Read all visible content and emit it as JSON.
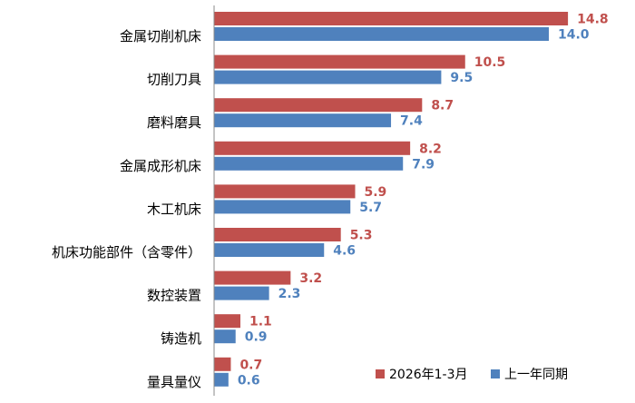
{
  "chart_data": {
    "type": "bar",
    "orientation": "horizontal",
    "categories": [
      "金属切削机床",
      "切削刀具",
      "磨料磨具",
      "金属成形机床",
      "木工机床",
      "机床功能部件（含零件）",
      "数控装置",
      "铸造机",
      "量具量仪"
    ],
    "series": [
      {
        "name": "2026年1-3月",
        "color": "#C0504D",
        "values": [
          14.8,
          10.5,
          8.7,
          8.2,
          5.9,
          5.3,
          3.2,
          1.1,
          0.7
        ]
      },
      {
        "name": "上一年同期",
        "color": "#4F81BD",
        "values": [
          14.0,
          9.5,
          7.4,
          7.9,
          5.7,
          4.6,
          2.3,
          0.9,
          0.6
        ]
      }
    ],
    "xlim": [
      0,
      16.2
    ],
    "title": "",
    "xlabel": "",
    "ylabel": "",
    "grid": false,
    "legend_position": "bottom-right"
  }
}
